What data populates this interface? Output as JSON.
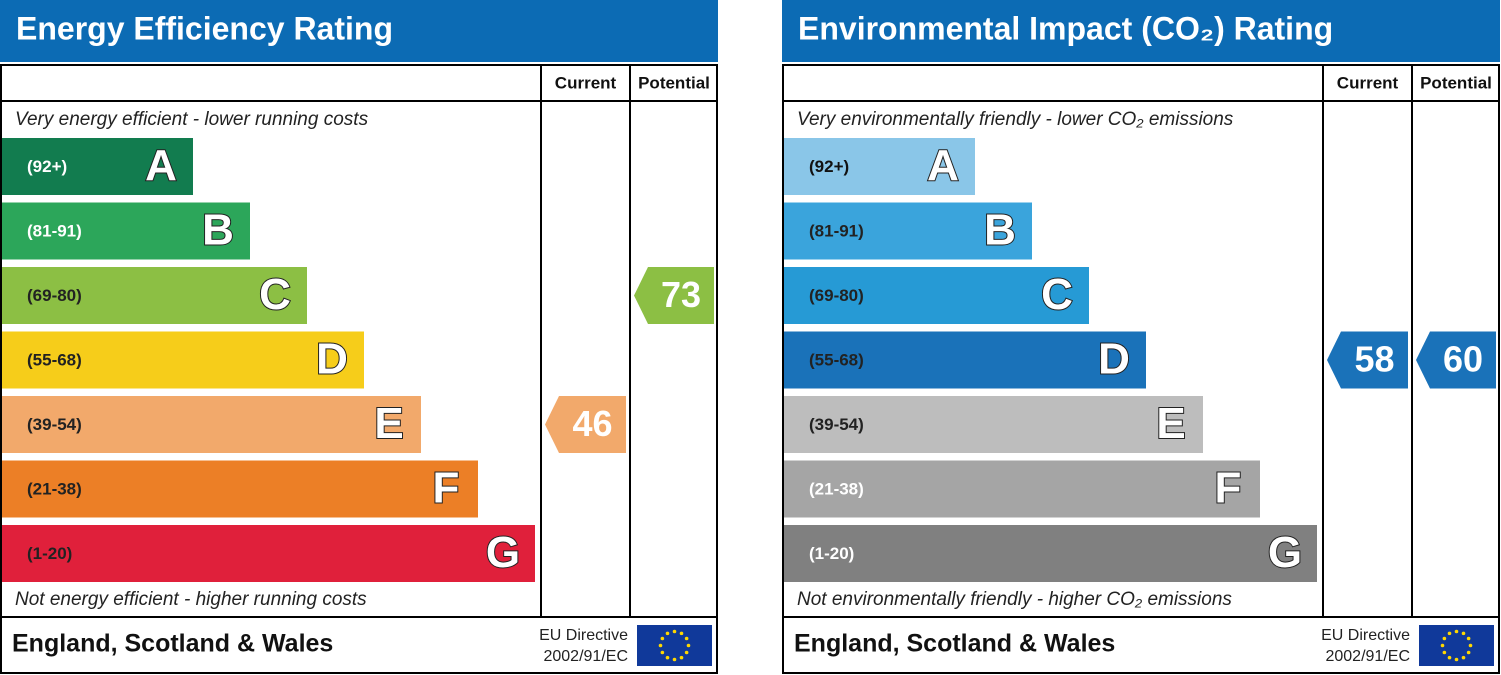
{
  "chart_data": [
    {
      "type": "epc",
      "title": "Energy Efficiency Rating",
      "columns": [
        "Current",
        "Potential"
      ],
      "top_note": "Very energy efficient - lower running costs",
      "bottom_note": "Not energy efficient - higher running costs",
      "bands": [
        {
          "range": "(92+)",
          "letter": "A",
          "color": "#127c4f",
          "label_color": "#ffffff"
        },
        {
          "range": "(81-91)",
          "letter": "B",
          "color": "#2ca65a",
          "label_color": "#ffffff"
        },
        {
          "range": "(69-80)",
          "letter": "C",
          "color": "#8cbf44",
          "label_color": "#222222"
        },
        {
          "range": "(55-68)",
          "letter": "D",
          "color": "#f6cd1a",
          "label_color": "#222222"
        },
        {
          "range": "(39-54)",
          "letter": "E",
          "color": "#f2a96b",
          "label_color": "#222222"
        },
        {
          "range": "(21-38)",
          "letter": "F",
          "color": "#ec7f26",
          "label_color": "#222222"
        },
        {
          "range": "(1-20)",
          "letter": "G",
          "color": "#e0203b",
          "label_color": "#222222"
        }
      ],
      "current": 46,
      "potential": 73,
      "footer": "England, Scotland & Wales",
      "directive": [
        "EU Directive",
        "2002/91/EC"
      ]
    },
    {
      "type": "epc",
      "title": "Environmental Impact (CO₂) Rating",
      "columns": [
        "Current",
        "Potential"
      ],
      "top_note": "Very environmentally friendly - lower CO₂ emissions",
      "bottom_note": "Not environmentally friendly - higher CO₂ emissions",
      "bands": [
        {
          "range": "(92+)",
          "letter": "A",
          "color": "#8ac6e8",
          "label_color": "#111111"
        },
        {
          "range": "(81-91)",
          "letter": "B",
          "color": "#3aa4dc",
          "label_color": "#222222"
        },
        {
          "range": "(69-80)",
          "letter": "C",
          "color": "#269ad5",
          "label_color": "#222222"
        },
        {
          "range": "(55-68)",
          "letter": "D",
          "color": "#1a72b9",
          "label_color": "#222222"
        },
        {
          "range": "(39-54)",
          "letter": "E",
          "color": "#bdbdbd",
          "label_color": "#222222"
        },
        {
          "range": "(21-38)",
          "letter": "F",
          "color": "#a5a5a5",
          "label_color": "#ffffff"
        },
        {
          "range": "(1-20)",
          "letter": "G",
          "color": "#808080",
          "label_color": "#ffffff"
        }
      ],
      "current": 58,
      "potential": 60,
      "footer": "England, Scotland & Wales",
      "directive": [
        "EU Directive",
        "2002/91/EC"
      ]
    }
  ]
}
